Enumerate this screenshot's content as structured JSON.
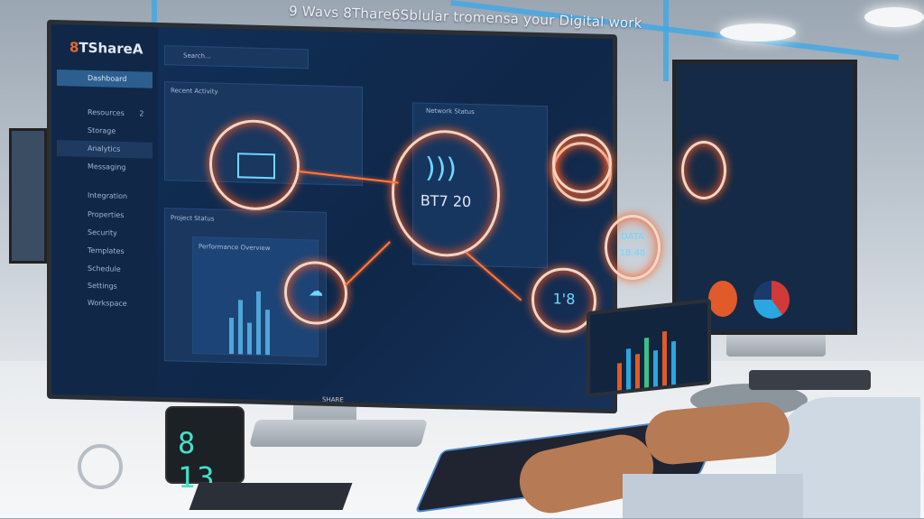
{
  "headline": "9 Wavs 8Thare6Sblular tromensa your Digital work",
  "app": {
    "logo_prefix": "8",
    "logo_text": "TShareA",
    "search_label": "Search...",
    "sidebar": [
      {
        "label": "Dashboard",
        "icon": "home-icon",
        "state": "active"
      },
      {
        "label": "Resources",
        "icon": "lock-icon",
        "badge": "2"
      },
      {
        "label": "Storage",
        "icon": "stack-icon"
      },
      {
        "label": "Analytics",
        "icon": "heart-icon",
        "state": "highlighted"
      },
      {
        "label": "Messaging",
        "icon": "folder-icon"
      },
      {
        "label": "Integration",
        "icon": "monitor-icon"
      },
      {
        "label": "Properties",
        "icon": "file-icon"
      },
      {
        "label": "Security",
        "icon": "key-icon"
      },
      {
        "label": "Templates",
        "icon": "grid-icon"
      },
      {
        "label": "Schedule",
        "icon": "calendar-icon"
      },
      {
        "label": "Settings",
        "icon": "wrench-icon"
      },
      {
        "label": "Workspace",
        "icon": "cloud-icon"
      }
    ],
    "panels": {
      "top_title": "Recent Activity",
      "mid_title": "Project Status",
      "report_title": "Performance Overview",
      "network_title": "Network Status"
    },
    "center_readout": "BT7 20",
    "ring_right_lines": [
      "DATA",
      "18:48"
    ],
    "ring_small": "1'8",
    "monitor_brand": "SHARE"
  },
  "desk_clock": "8 13",
  "colors": {
    "accent": "#ff6a2a",
    "screen": "#12305a",
    "glow": "#6fd8ff",
    "digits": "#45e0c8"
  }
}
